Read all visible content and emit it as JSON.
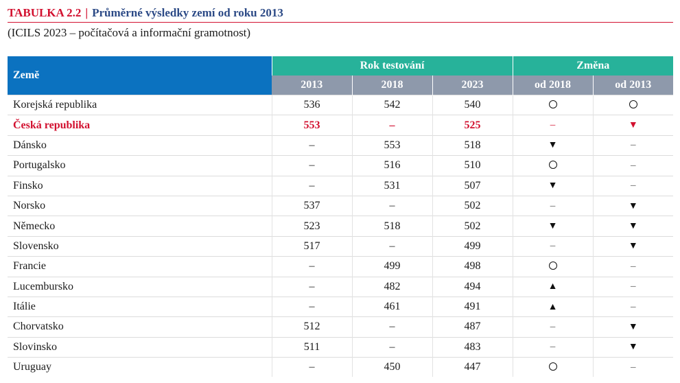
{
  "title": {
    "label": "TABULKA 2.2",
    "separator": "|",
    "text": "Průměrné výsledky zemí od roku 2013"
  },
  "subtitle": "(ICILS 2023 – počítačová a informační gramotnost)",
  "table": {
    "country_header": "Země",
    "group_test_year": "Rok testování",
    "group_change": "Změna",
    "year_headers": [
      "2013",
      "2018",
      "2023"
    ],
    "change_headers": [
      "od 2018",
      "od 2013"
    ],
    "symbols": {
      "none": "–",
      "down": "▼",
      "up": "▲",
      "circle": "○"
    },
    "rows": [
      {
        "country": "Korejská republika",
        "y2013": "536",
        "y2018": "542",
        "y2023": "540",
        "ch2018": "circle",
        "ch2013": "circle",
        "highlight": false
      },
      {
        "country": "Česká republika",
        "y2013": "553",
        "y2018": "–",
        "y2023": "525",
        "ch2018": "none",
        "ch2013": "down",
        "highlight": true
      },
      {
        "country": "Dánsko",
        "y2013": "–",
        "y2018": "553",
        "y2023": "518",
        "ch2018": "down",
        "ch2013": "none",
        "highlight": false
      },
      {
        "country": "Portugalsko",
        "y2013": "–",
        "y2018": "516",
        "y2023": "510",
        "ch2018": "circle",
        "ch2013": "none",
        "highlight": false
      },
      {
        "country": "Finsko",
        "y2013": "–",
        "y2018": "531",
        "y2023": "507",
        "ch2018": "down",
        "ch2013": "none",
        "highlight": false
      },
      {
        "country": "Norsko",
        "y2013": "537",
        "y2018": "–",
        "y2023": "502",
        "ch2018": "none",
        "ch2013": "down",
        "highlight": false
      },
      {
        "country": "Německo",
        "y2013": "523",
        "y2018": "518",
        "y2023": "502",
        "ch2018": "down",
        "ch2013": "down",
        "highlight": false
      },
      {
        "country": "Slovensko",
        "y2013": "517",
        "y2018": "–",
        "y2023": "499",
        "ch2018": "none",
        "ch2013": "down",
        "highlight": false
      },
      {
        "country": "Francie",
        "y2013": "–",
        "y2018": "499",
        "y2023": "498",
        "ch2018": "circle",
        "ch2013": "none",
        "highlight": false
      },
      {
        "country": "Lucembursko",
        "y2013": "–",
        "y2018": "482",
        "y2023": "494",
        "ch2018": "up",
        "ch2013": "none",
        "highlight": false
      },
      {
        "country": "Itálie",
        "y2013": "–",
        "y2018": "461",
        "y2023": "491",
        "ch2018": "up",
        "ch2013": "none",
        "highlight": false
      },
      {
        "country": "Chorvatsko",
        "y2013": "512",
        "y2018": "–",
        "y2023": "487",
        "ch2018": "none",
        "ch2013": "down",
        "highlight": false
      },
      {
        "country": "Slovinsko",
        "y2013": "511",
        "y2018": "–",
        "y2023": "483",
        "ch2018": "none",
        "ch2013": "down",
        "highlight": false
      },
      {
        "country": "Uruguay",
        "y2013": "–",
        "y2018": "450",
        "y2023": "447",
        "ch2018": "circle",
        "ch2013": "none",
        "highlight": false
      }
    ]
  }
}
